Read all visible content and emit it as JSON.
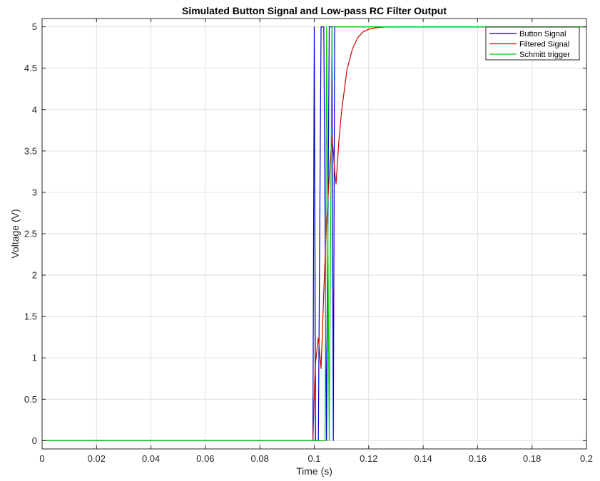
{
  "chart_data": {
    "type": "line",
    "title": "Simulated Button Signal and Low-pass RC Filter Output",
    "xlabel": "Time (s)",
    "ylabel": "Voltage (V)",
    "xlim": [
      0,
      0.2
    ],
    "ylim": [
      -0.1,
      5.1
    ],
    "x_ticks": [
      0,
      0.02,
      0.04,
      0.06,
      0.08,
      0.1,
      0.12,
      0.14,
      0.16,
      0.18,
      0.2
    ],
    "x_tick_labels": [
      "0",
      "0.02",
      "0.04",
      "0.06",
      "0.08",
      "0.1",
      "0.12",
      "0.14",
      "0.16",
      "0.18",
      "0.2"
    ],
    "y_ticks": [
      0,
      0.5,
      1,
      1.5,
      2,
      2.5,
      3,
      3.5,
      4,
      4.5,
      5
    ],
    "y_tick_labels": [
      "0",
      "0.5",
      "1",
      "1.5",
      "2",
      "2.5",
      "3",
      "3.5",
      "4",
      "4.5",
      "5"
    ],
    "grid": true,
    "legend_position": "top-right",
    "series": [
      {
        "name": "Button Signal",
        "color": "#0000cc",
        "legend_color": "#00008b",
        "x": [
          0,
          0.0995,
          0.1,
          0.1005,
          0.1015,
          0.1025,
          0.1035,
          0.1045,
          0.1055,
          0.1065,
          0.107,
          0.1075,
          0.108,
          0.2
        ],
        "y": [
          0,
          0,
          5,
          0,
          0,
          5,
          5,
          0,
          5,
          5,
          0,
          5,
          5,
          5
        ]
      },
      {
        "name": "Filtered Signal",
        "color": "#cc0000",
        "legend_color": "#cc0000",
        "x": [
          0,
          0.0995,
          0.1,
          0.1005,
          0.1015,
          0.1025,
          0.1035,
          0.1045,
          0.1055,
          0.1065,
          0.107,
          0.1075,
          0.108,
          0.109,
          0.11,
          0.112,
          0.114,
          0.116,
          0.118,
          0.12,
          0.122,
          0.124,
          0.126,
          0.128,
          0.13,
          0.2
        ],
        "y": [
          0,
          0,
          0.55,
          0.95,
          1.24,
          0.87,
          1.8,
          2.6,
          3.2,
          3.68,
          3.5,
          3.25,
          3.1,
          3.6,
          3.97,
          4.48,
          4.73,
          4.87,
          4.94,
          4.97,
          4.985,
          4.993,
          4.997,
          4.999,
          5,
          5
        ]
      },
      {
        "name": "Schmitt trigger",
        "color": "#00cc00",
        "legend_color": "#00cc00",
        "x": [
          0,
          0.104,
          0.1045,
          0.1055,
          0.1065,
          0.2
        ],
        "y": [
          0,
          0,
          5,
          0,
          5,
          5
        ]
      }
    ]
  }
}
